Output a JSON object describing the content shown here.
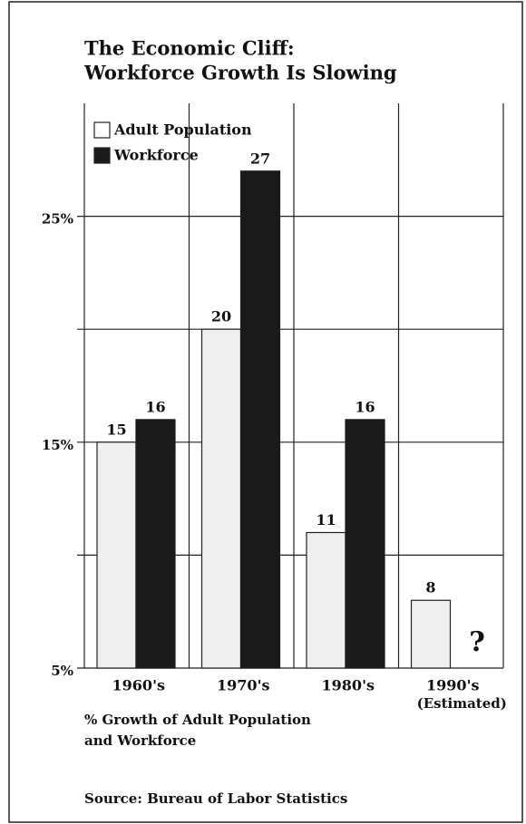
{
  "chart_data": {
    "type": "bar",
    "title": [
      "The Economic Cliff:",
      "Workforce Growth Is Slowing"
    ],
    "categories": [
      "1960's",
      "1970's",
      "1980's",
      "1990's"
    ],
    "x_note": "(Estimated)",
    "series": [
      {
        "name": "Adult Population",
        "color": "#efefef",
        "values": [
          15,
          20,
          11,
          8
        ]
      },
      {
        "name": "Workforce",
        "color": "#1a1a1a",
        "values": [
          16,
          27,
          16,
          null
        ]
      }
    ],
    "annotation": "?",
    "ylim": [
      5,
      30
    ],
    "yticks": [
      {
        "value": 5,
        "label": "5%"
      },
      {
        "value": 15,
        "label": "15%"
      },
      {
        "value": 25,
        "label": "25%"
      }
    ],
    "minor_yticks": [
      10,
      20
    ],
    "grid": true,
    "legend": "top-left",
    "axis_label": [
      "% Growth of Adult Population",
      "and Workforce"
    ],
    "source": "Source: Bureau of Labor Statistics"
  }
}
